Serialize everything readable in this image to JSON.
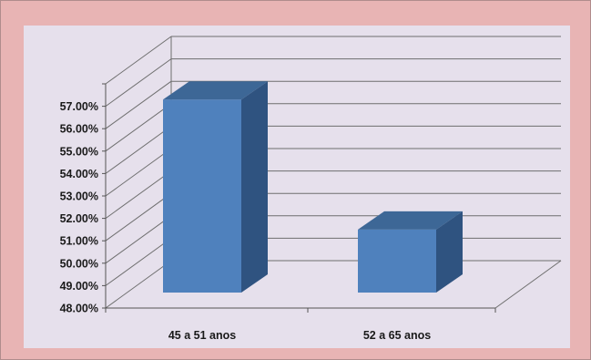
{
  "chart_data": {
    "type": "bar",
    "style": "3d-column",
    "categories": [
      "45 a  51 anos",
      "52 a 65 anos"
    ],
    "values": [
      57.3,
      51.5
    ],
    "y_ticks": [
      "48.00%",
      "49.00%",
      "50.00%",
      "51.00%",
      "52.00%",
      "53.00%",
      "54.00%",
      "55.00%",
      "56.00%",
      "57.00%"
    ],
    "ylim": [
      48,
      57
    ],
    "grid": true,
    "legend": "none",
    "title": "",
    "xlabel": "",
    "ylabel": ""
  },
  "colors": {
    "frame": "#e8b4b4",
    "plot_background": "#e6e0ec",
    "bar_front": "#4f81bd",
    "bar_top": "#3d6796",
    "bar_side": "#2f5380",
    "grid": "#6e6e6e"
  }
}
